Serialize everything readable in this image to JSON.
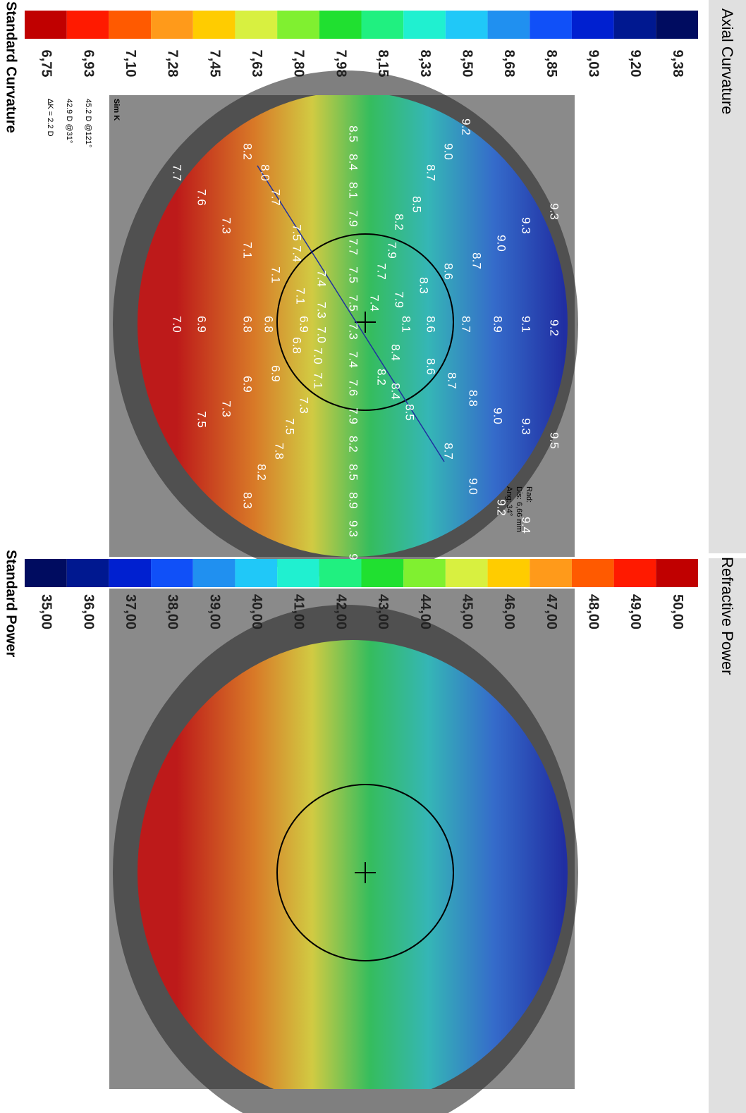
{
  "axial": {
    "title": "Axial Curvature",
    "scale_title": "Standard Curvature",
    "scale_labels": [
      "6,75",
      "6,93",
      "7,10",
      "7,28",
      "7,45",
      "7,63",
      "7,80",
      "7,98",
      "8,15",
      "8,33",
      "8,50",
      "8,68",
      "8,85",
      "9,03",
      "9,20",
      "9,38"
    ],
    "scale_colors": [
      "#c00000",
      "#ff1a00",
      "#ff5a00",
      "#ff9a1a",
      "#ffcc00",
      "#d8f040",
      "#80f030",
      "#20e030",
      "#20f080",
      "#20f0d0",
      "#20c8f8",
      "#2090f0",
      "#1050f8",
      "#0020d0",
      "#001890",
      "#000c60"
    ]
  },
  "refractive": {
    "title": "Refractive Power",
    "scale_title": "Standard Power",
    "scale_labels": [
      "35,00",
      "36,00",
      "37,00",
      "38,00",
      "39,00",
      "40,00",
      "41,00",
      "42,00",
      "43,00",
      "44,00",
      "45,00",
      "46,00",
      "47,00",
      "48,00",
      "49,00",
      "50,00"
    ],
    "scale_colors": [
      "#000c60",
      "#001890",
      "#0020d0",
      "#1050f8",
      "#2090f0",
      "#20c8f8",
      "#20f0d0",
      "#20f080",
      "#20e030",
      "#80f030",
      "#d8f040",
      "#ffcc00",
      "#ff9a1a",
      "#ff5a00",
      "#ff1a00",
      "#c00000"
    ]
  },
  "sim_k": {
    "heading": "Sim K",
    "lines": [
      "45.2 D @121°",
      "42.9 D @31°",
      "ΔK = 2.2 D"
    ]
  },
  "position": {
    "lines": [
      "Rad:",
      "Dis: 6,66 mm",
      "Ang: 34°"
    ]
  },
  "map_values": [
    "9.3",
    "9.2",
    "9.5",
    "9.3",
    "9.1",
    "9.3",
    "9.4",
    "9.0",
    "8.9",
    "9.0",
    "9.2",
    "9.2",
    "8.7",
    "8.7",
    "8.8",
    "9.0",
    "9.0",
    "8.6",
    "8.7",
    "8.7",
    "8.7",
    "8.6",
    "8.6",
    "8.5",
    "8.3",
    "8.5",
    "8.2",
    "7.9",
    "7.9",
    "8.1",
    "8.4",
    "8.4",
    "7.7",
    "7.4",
    "8.2",
    "8.5",
    "8.4",
    "8.1",
    "7.9",
    "7.7",
    "7.5",
    "7.5",
    "7.3",
    "7.4",
    "7.6",
    "7.9",
    "8.2",
    "8.5",
    "8.9",
    "9.3",
    "9",
    "7.4",
    "7.3",
    "7.0",
    "7.0",
    "7.1",
    "8.2",
    "8.0",
    "7.7",
    "7.5",
    "7.4",
    "7.1",
    "6.9",
    "6.8",
    "7.3",
    "7.5",
    "7.8",
    "8.2",
    "8.3",
    "7.1",
    "6.8",
    "6.9",
    "7.1",
    "6.8",
    "6.9",
    "7.3",
    "7.3",
    "7.6",
    "6.9",
    "7.5",
    "7.7",
    "7.0"
  ]
}
